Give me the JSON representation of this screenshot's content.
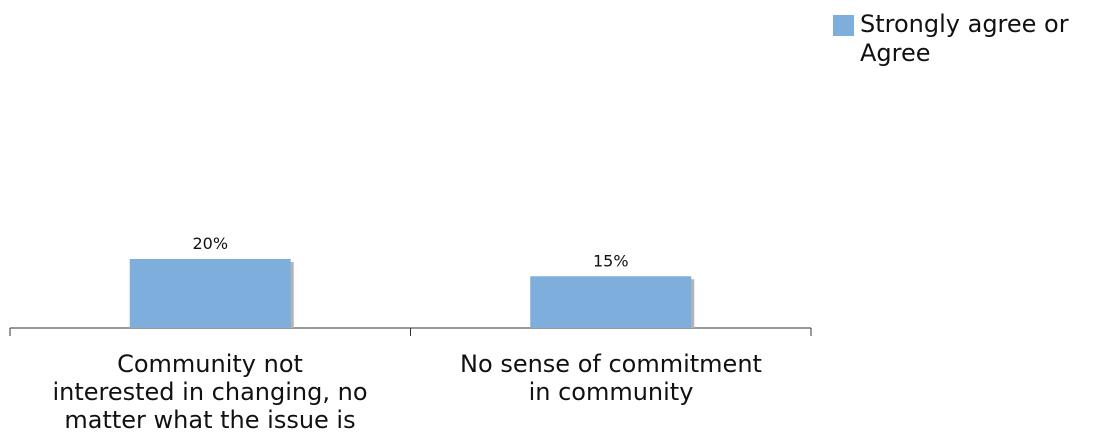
{
  "chart_data": {
    "type": "bar",
    "categories": [
      "Community not interested in changing, no matter what the issue is",
      "No sense of commitment in community"
    ],
    "category_lines": [
      [
        "Community not",
        "interested in changing, no",
        "matter what the issue is"
      ],
      [
        "No sense of commitment",
        "in community"
      ]
    ],
    "series": [
      {
        "name": "Strongly agree or Agree",
        "values": [
          20,
          15
        ],
        "color": "#7eaedc"
      }
    ],
    "data_labels": [
      "20%",
      "15%"
    ],
    "legend_lines": [
      "Strongly agree or",
      "Agree"
    ],
    "ylim": [
      0,
      100
    ],
    "grid": false,
    "legend_position": "top-right",
    "shadow_color": "#b4b4b4",
    "axis_color": "#333333"
  }
}
